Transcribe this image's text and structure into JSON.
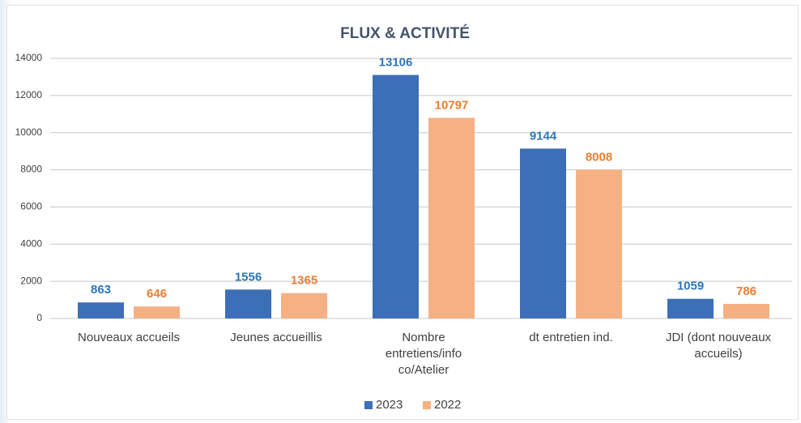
{
  "chart_data": {
    "type": "bar",
    "title": "FLUX & ACTIVITÉ",
    "categories": [
      "Nouveaux accueils",
      "Jeunes accueillis",
      "Nombre entretiens/info co/Atelier",
      "dt entretien ind.",
      "JDI (dont nouveaux accueils)"
    ],
    "series": [
      {
        "name": "2023",
        "color": "#3d6fb8",
        "label_color": "#2e75b6",
        "values": [
          863,
          1556,
          13106,
          9144,
          1059
        ]
      },
      {
        "name": "2022",
        "color": "#f5b183",
        "label_color": "#ed7d31",
        "values": [
          646,
          1365,
          10797,
          8008,
          786
        ]
      }
    ],
    "ylim": [
      0,
      14000
    ],
    "yticks": [
      0,
      2000,
      4000,
      6000,
      8000,
      10000,
      12000,
      14000
    ],
    "grid": true,
    "legend": "bottom"
  }
}
